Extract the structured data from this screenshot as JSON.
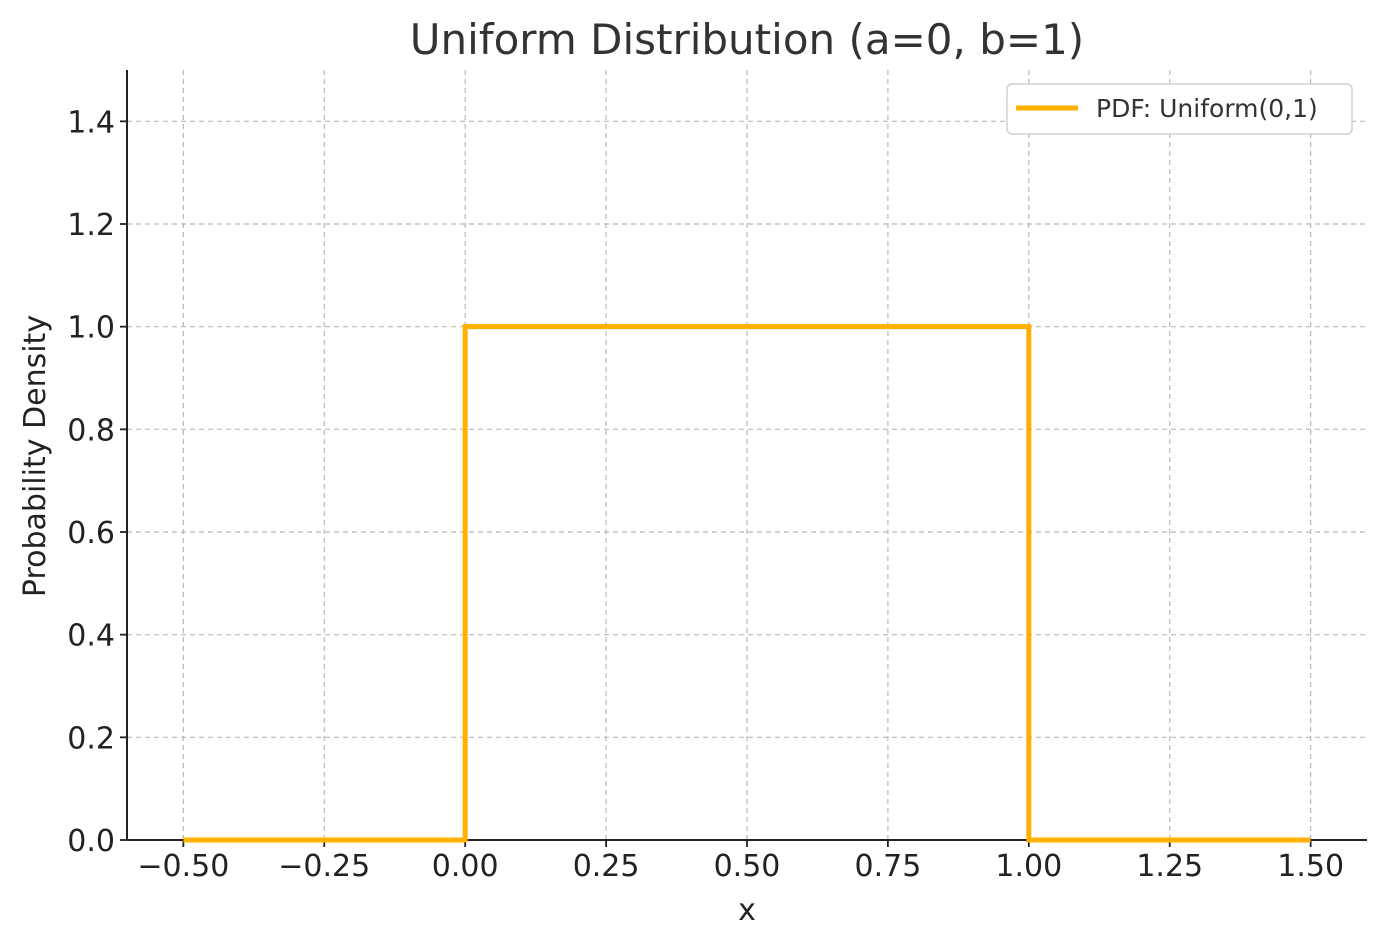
{
  "chart_data": {
    "type": "line",
    "title": "Uniform Distribution (a=0, b=1)",
    "xlabel": "x",
    "ylabel": "Probability Density",
    "xlim": [
      -0.6,
      1.6
    ],
    "ylim": [
      0.0,
      1.5
    ],
    "x_ticks": [
      -0.5,
      -0.25,
      0.0,
      0.25,
      0.5,
      0.75,
      1.0,
      1.25,
      1.5
    ],
    "x_tick_labels": [
      "−0.50",
      "−0.25",
      "0.00",
      "0.25",
      "0.50",
      "0.75",
      "1.00",
      "1.25",
      "1.50"
    ],
    "y_ticks": [
      0.0,
      0.2,
      0.4,
      0.6,
      0.8,
      1.0,
      1.2,
      1.4
    ],
    "y_tick_labels": [
      "0.0",
      "0.2",
      "0.4",
      "0.6",
      "0.8",
      "1.0",
      "1.2",
      "1.4"
    ],
    "grid": true,
    "legend_position": "top-right",
    "series": [
      {
        "name": "PDF: Uniform(0,1)",
        "color": "#ffb000",
        "x": [
          -0.5,
          0.0,
          0.0,
          1.0,
          1.0,
          1.5
        ],
        "y": [
          0.0,
          0.0,
          1.0,
          1.0,
          0.0,
          0.0
        ]
      }
    ]
  }
}
